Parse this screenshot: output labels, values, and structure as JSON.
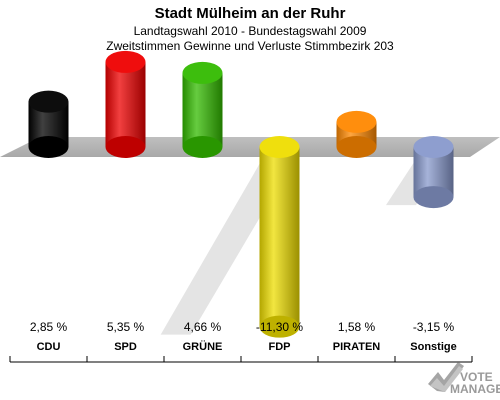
{
  "chart_data": {
    "type": "bar",
    "title": "Stadt Mülheim an der Ruhr",
    "subtitle_1": "Landtagswahl 2010 - Bundestagswahl 2009",
    "subtitle_2": "Zweitstimmen Gewinne und Verluste Stimmbezirk 203",
    "categories": [
      "CDU",
      "SPD",
      "GRÜNE",
      "FDP",
      "PIRATEN",
      "Sonstige"
    ],
    "values": [
      2.85,
      5.35,
      4.66,
      -11.3,
      1.58,
      -3.15
    ],
    "value_labels": [
      "2,85 %",
      "5,35 %",
      "4,66 %",
      "-11,30 %",
      "1,58 %",
      "-3,15 %"
    ],
    "colors": [
      "#000000",
      "#ee0000",
      "#33bb00",
      "#eedd00",
      "#ff8800",
      "#8899cc"
    ],
    "xlabel": "",
    "ylabel": "",
    "grid": false
  },
  "logo": {
    "line1": "VOTE",
    "line2": "MANAGER"
  }
}
